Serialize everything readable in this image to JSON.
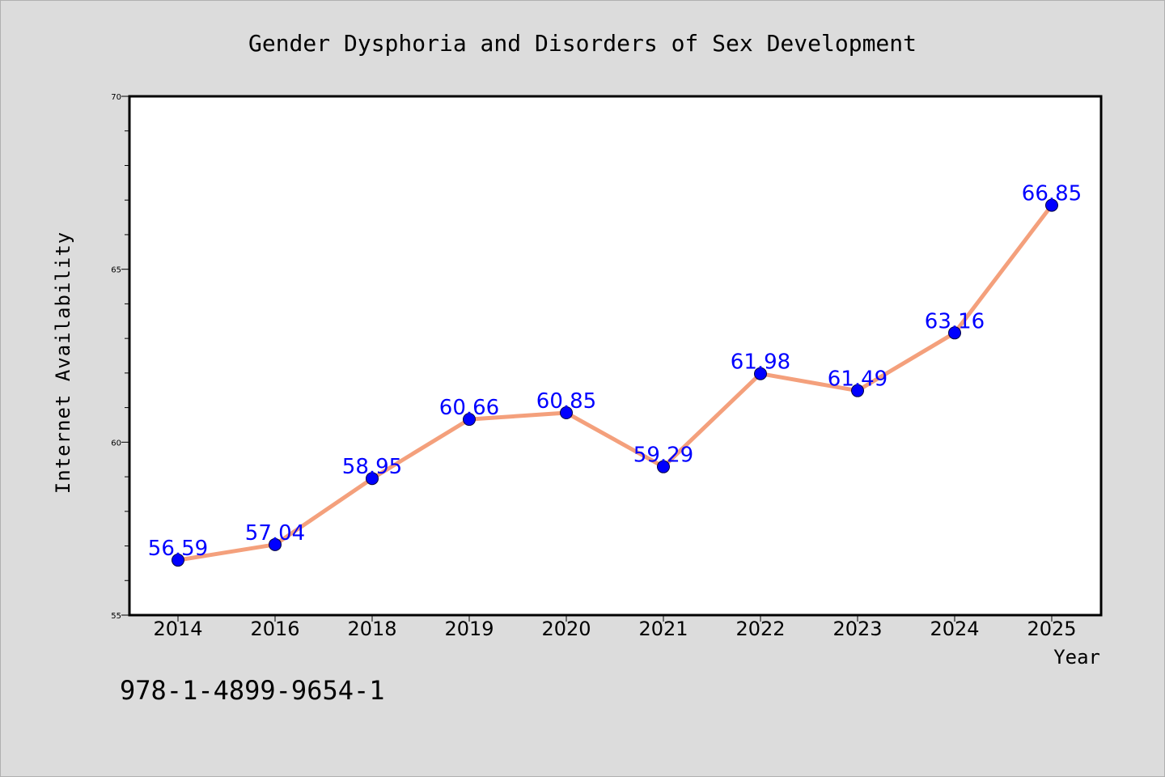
{
  "chart_data": {
    "type": "line",
    "title": "Gender Dysphoria and Disorders of Sex Development",
    "xlabel": "Year",
    "ylabel": "Internet Availability",
    "categories": [
      "2014",
      "2016",
      "2018",
      "2019",
      "2020",
      "2021",
      "2022",
      "2023",
      "2024",
      "2025"
    ],
    "values": [
      56.59,
      57.04,
      58.95,
      60.66,
      60.85,
      59.29,
      61.98,
      61.49,
      63.16,
      66.85
    ],
    "data_labels": [
      "56.59",
      "57.04",
      "58.95",
      "60.66",
      "60.85",
      "59.29",
      "61.98",
      "61.49",
      "63.16",
      "66.85"
    ],
    "ylim": [
      55,
      70
    ],
    "yticks": [
      55,
      60,
      65,
      70
    ],
    "ytick_labels": [
      "55",
      "60",
      "65",
      "70"
    ],
    "grid": false,
    "colors": {
      "line": "#f4a07c",
      "marker": "#0000ff",
      "data_label": "#0000ff",
      "background": "#dcdcdc",
      "plot_area": "#ffffff"
    }
  },
  "footer": {
    "isbn": "978-1-4899-9654-1"
  }
}
